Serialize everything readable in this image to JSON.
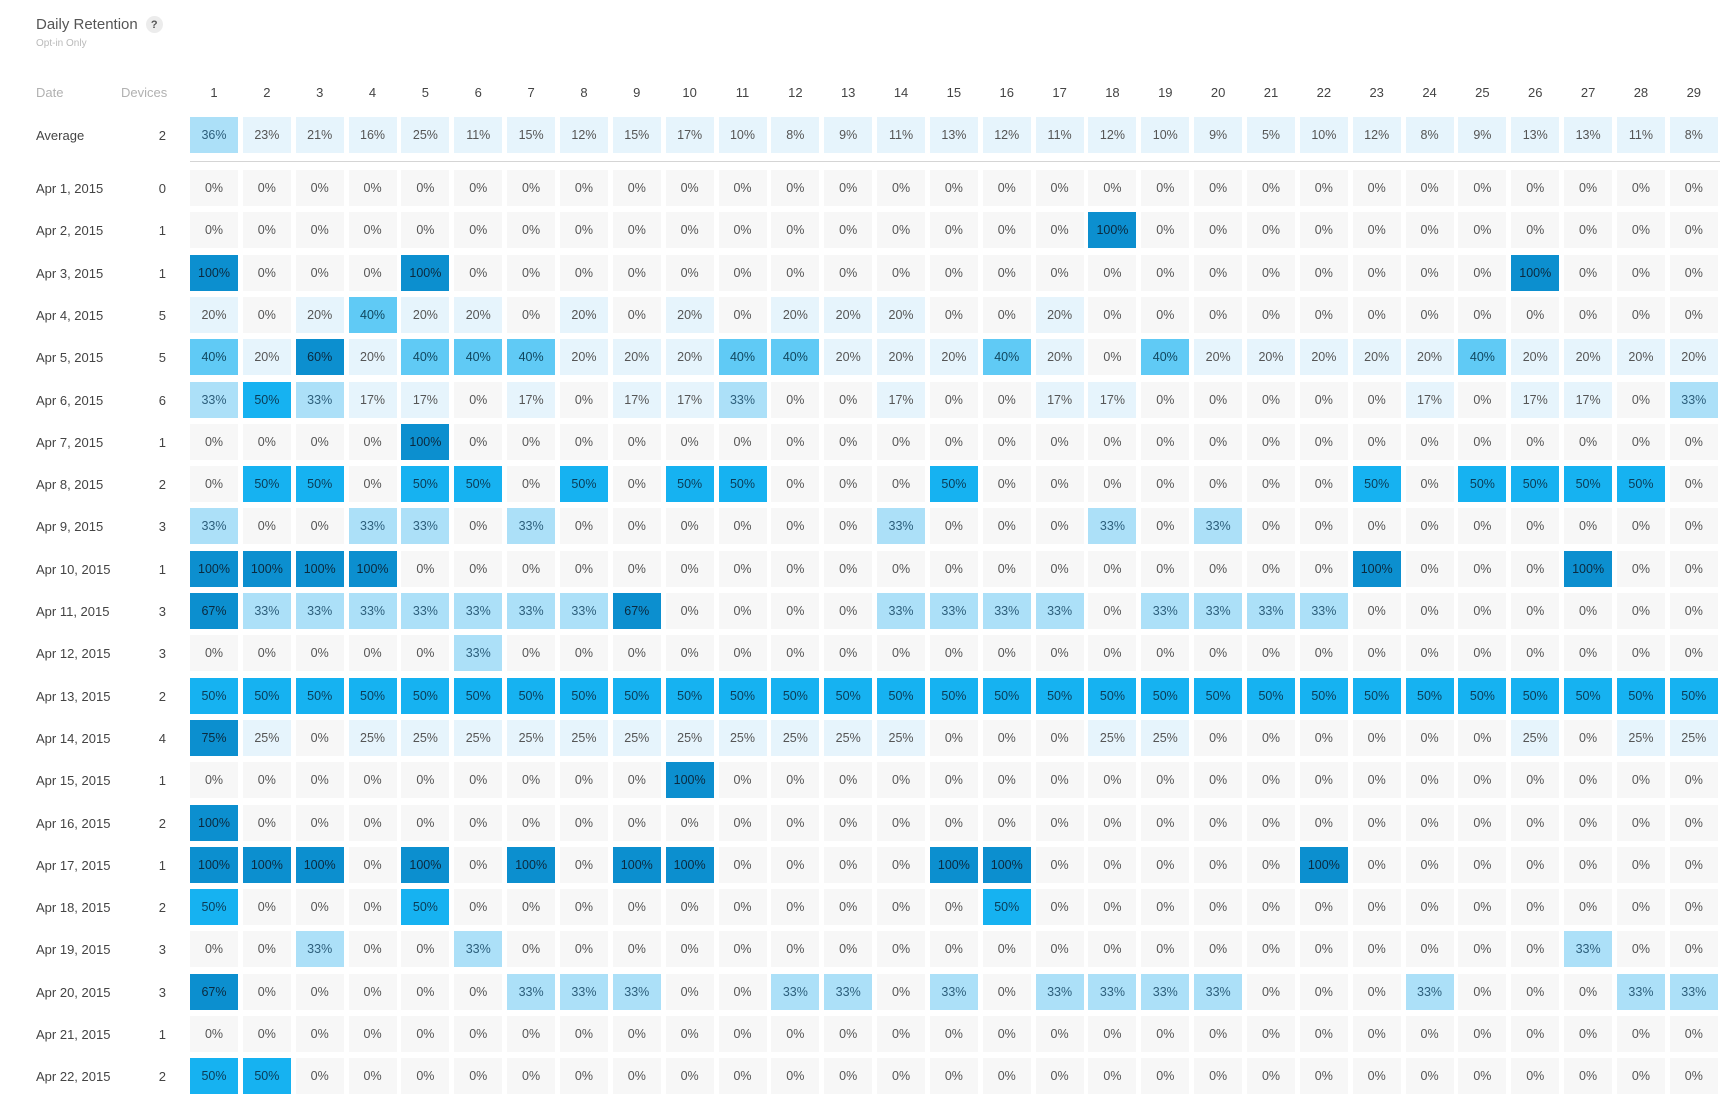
{
  "header": {
    "title": "Daily Retention",
    "help_icon": "?",
    "subtitle": "Opt-in Only"
  },
  "table": {
    "date_label": "Date",
    "devices_label": "Devices"
  },
  "chart_data": {
    "type": "heatmap",
    "title": "Daily Retention",
    "subtitle": "Opt-in Only",
    "columns": [
      "1",
      "2",
      "3",
      "4",
      "5",
      "6",
      "7",
      "8",
      "9",
      "10",
      "11",
      "12",
      "13",
      "14",
      "15",
      "16",
      "17",
      "18",
      "19",
      "20",
      "21",
      "22",
      "23",
      "24",
      "25",
      "26",
      "27",
      "28",
      "29"
    ],
    "value_unit": "%",
    "average": {
      "label": "Average",
      "devices": 2,
      "values": [
        36,
        23,
        21,
        16,
        25,
        11,
        15,
        12,
        15,
        17,
        10,
        8,
        9,
        11,
        13,
        12,
        11,
        12,
        10,
        9,
        5,
        10,
        12,
        8,
        9,
        13,
        13,
        11,
        8
      ]
    },
    "rows": [
      {
        "date": "Apr 1, 2015",
        "devices": 0,
        "values": [
          0,
          0,
          0,
          0,
          0,
          0,
          0,
          0,
          0,
          0,
          0,
          0,
          0,
          0,
          0,
          0,
          0,
          0,
          0,
          0,
          0,
          0,
          0,
          0,
          0,
          0,
          0,
          0,
          0
        ]
      },
      {
        "date": "Apr 2, 2015",
        "devices": 1,
        "values": [
          0,
          0,
          0,
          0,
          0,
          0,
          0,
          0,
          0,
          0,
          0,
          0,
          0,
          0,
          0,
          0,
          0,
          100,
          0,
          0,
          0,
          0,
          0,
          0,
          0,
          0,
          0,
          0,
          0
        ]
      },
      {
        "date": "Apr 3, 2015",
        "devices": 1,
        "values": [
          100,
          0,
          0,
          0,
          100,
          0,
          0,
          0,
          0,
          0,
          0,
          0,
          0,
          0,
          0,
          0,
          0,
          0,
          0,
          0,
          0,
          0,
          0,
          0,
          0,
          100,
          0,
          0,
          0
        ]
      },
      {
        "date": "Apr 4, 2015",
        "devices": 5,
        "values": [
          20,
          0,
          20,
          40,
          20,
          20,
          0,
          20,
          0,
          20,
          0,
          20,
          20,
          20,
          0,
          0,
          20,
          0,
          0,
          0,
          0,
          0,
          0,
          0,
          0,
          0,
          0,
          0,
          0
        ]
      },
      {
        "date": "Apr 5, 2015",
        "devices": 5,
        "values": [
          40,
          20,
          60,
          20,
          40,
          40,
          40,
          20,
          20,
          20,
          40,
          40,
          20,
          20,
          20,
          40,
          20,
          0,
          40,
          20,
          20,
          20,
          20,
          20,
          40,
          20,
          20,
          20,
          20
        ]
      },
      {
        "date": "Apr 6, 2015",
        "devices": 6,
        "values": [
          33,
          50,
          33,
          17,
          17,
          0,
          17,
          0,
          17,
          17,
          33,
          0,
          0,
          17,
          0,
          0,
          17,
          17,
          0,
          0,
          0,
          0,
          0,
          17,
          0,
          17,
          17,
          0,
          33
        ]
      },
      {
        "date": "Apr 7, 2015",
        "devices": 1,
        "values": [
          0,
          0,
          0,
          0,
          100,
          0,
          0,
          0,
          0,
          0,
          0,
          0,
          0,
          0,
          0,
          0,
          0,
          0,
          0,
          0,
          0,
          0,
          0,
          0,
          0,
          0,
          0,
          0,
          0
        ]
      },
      {
        "date": "Apr 8, 2015",
        "devices": 2,
        "values": [
          0,
          50,
          50,
          0,
          50,
          50,
          0,
          50,
          0,
          50,
          50,
          0,
          0,
          0,
          50,
          0,
          0,
          0,
          0,
          0,
          0,
          0,
          50,
          0,
          50,
          50,
          50,
          50,
          0
        ]
      },
      {
        "date": "Apr 9, 2015",
        "devices": 3,
        "values": [
          33,
          0,
          0,
          33,
          33,
          0,
          33,
          0,
          0,
          0,
          0,
          0,
          0,
          33,
          0,
          0,
          0,
          33,
          0,
          33,
          0,
          0,
          0,
          0,
          0,
          0,
          0,
          0,
          0
        ]
      },
      {
        "date": "Apr 10, 2015",
        "devices": 1,
        "values": [
          100,
          100,
          100,
          100,
          0,
          0,
          0,
          0,
          0,
          0,
          0,
          0,
          0,
          0,
          0,
          0,
          0,
          0,
          0,
          0,
          0,
          0,
          100,
          0,
          0,
          0,
          100,
          0,
          0
        ]
      },
      {
        "date": "Apr 11, 2015",
        "devices": 3,
        "values": [
          67,
          33,
          33,
          33,
          33,
          33,
          33,
          33,
          67,
          0,
          0,
          0,
          0,
          33,
          33,
          33,
          33,
          0,
          33,
          33,
          33,
          33,
          0,
          0,
          0,
          0,
          0,
          0,
          0
        ]
      },
      {
        "date": "Apr 12, 2015",
        "devices": 3,
        "values": [
          0,
          0,
          0,
          0,
          0,
          33,
          0,
          0,
          0,
          0,
          0,
          0,
          0,
          0,
          0,
          0,
          0,
          0,
          0,
          0,
          0,
          0,
          0,
          0,
          0,
          0,
          0,
          0,
          0
        ]
      },
      {
        "date": "Apr 13, 2015",
        "devices": 2,
        "values": [
          50,
          50,
          50,
          50,
          50,
          50,
          50,
          50,
          50,
          50,
          50,
          50,
          50,
          50,
          50,
          50,
          50,
          50,
          50,
          50,
          50,
          50,
          50,
          50,
          50,
          50,
          50,
          50,
          50
        ]
      },
      {
        "date": "Apr 14, 2015",
        "devices": 4,
        "values": [
          75,
          25,
          0,
          25,
          25,
          25,
          25,
          25,
          25,
          25,
          25,
          25,
          25,
          25,
          0,
          0,
          0,
          25,
          25,
          0,
          0,
          0,
          0,
          0,
          0,
          25,
          0,
          25,
          25
        ]
      },
      {
        "date": "Apr 15, 2015",
        "devices": 1,
        "values": [
          0,
          0,
          0,
          0,
          0,
          0,
          0,
          0,
          0,
          100,
          0,
          0,
          0,
          0,
          0,
          0,
          0,
          0,
          0,
          0,
          0,
          0,
          0,
          0,
          0,
          0,
          0,
          0,
          0
        ]
      },
      {
        "date": "Apr 16, 2015",
        "devices": 2,
        "values": [
          100,
          0,
          0,
          0,
          0,
          0,
          0,
          0,
          0,
          0,
          0,
          0,
          0,
          0,
          0,
          0,
          0,
          0,
          0,
          0,
          0,
          0,
          0,
          0,
          0,
          0,
          0,
          0,
          0
        ]
      },
      {
        "date": "Apr 17, 2015",
        "devices": 1,
        "values": [
          100,
          100,
          100,
          0,
          100,
          0,
          100,
          0,
          100,
          100,
          0,
          0,
          0,
          0,
          100,
          100,
          0,
          0,
          0,
          0,
          0,
          100,
          0,
          0,
          0,
          0,
          0,
          0,
          0
        ]
      },
      {
        "date": "Apr 18, 2015",
        "devices": 2,
        "values": [
          50,
          0,
          0,
          0,
          50,
          0,
          0,
          0,
          0,
          0,
          0,
          0,
          0,
          0,
          0,
          50,
          0,
          0,
          0,
          0,
          0,
          0,
          0,
          0,
          0,
          0,
          0,
          0,
          0
        ]
      },
      {
        "date": "Apr 19, 2015",
        "devices": 3,
        "values": [
          0,
          0,
          33,
          0,
          0,
          33,
          0,
          0,
          0,
          0,
          0,
          0,
          0,
          0,
          0,
          0,
          0,
          0,
          0,
          0,
          0,
          0,
          0,
          0,
          0,
          0,
          33,
          0,
          0
        ]
      },
      {
        "date": "Apr 20, 2015",
        "devices": 3,
        "values": [
          67,
          0,
          0,
          0,
          0,
          0,
          33,
          33,
          33,
          0,
          0,
          33,
          33,
          0,
          33,
          0,
          33,
          33,
          33,
          33,
          0,
          0,
          0,
          33,
          0,
          0,
          0,
          33,
          33
        ]
      },
      {
        "date": "Apr 21, 2015",
        "devices": 1,
        "values": [
          0,
          0,
          0,
          0,
          0,
          0,
          0,
          0,
          0,
          0,
          0,
          0,
          0,
          0,
          0,
          0,
          0,
          0,
          0,
          0,
          0,
          0,
          0,
          0,
          0,
          0,
          0,
          0,
          0
        ]
      },
      {
        "date": "Apr 22, 2015",
        "devices": 2,
        "values": [
          50,
          50,
          0,
          0,
          0,
          0,
          0,
          0,
          0,
          0,
          0,
          0,
          0,
          0,
          0,
          0,
          0,
          0,
          0,
          0,
          0,
          0,
          0,
          0,
          0,
          0,
          0,
          0,
          0
        ]
      }
    ],
    "colors": {
      "zero": "#f7f7f7",
      "low": "#e6f4fc",
      "mid": "#ace0f8",
      "high": "#60caf5",
      "higher": "#16b2f1",
      "max": "#0c8fcf"
    }
  }
}
